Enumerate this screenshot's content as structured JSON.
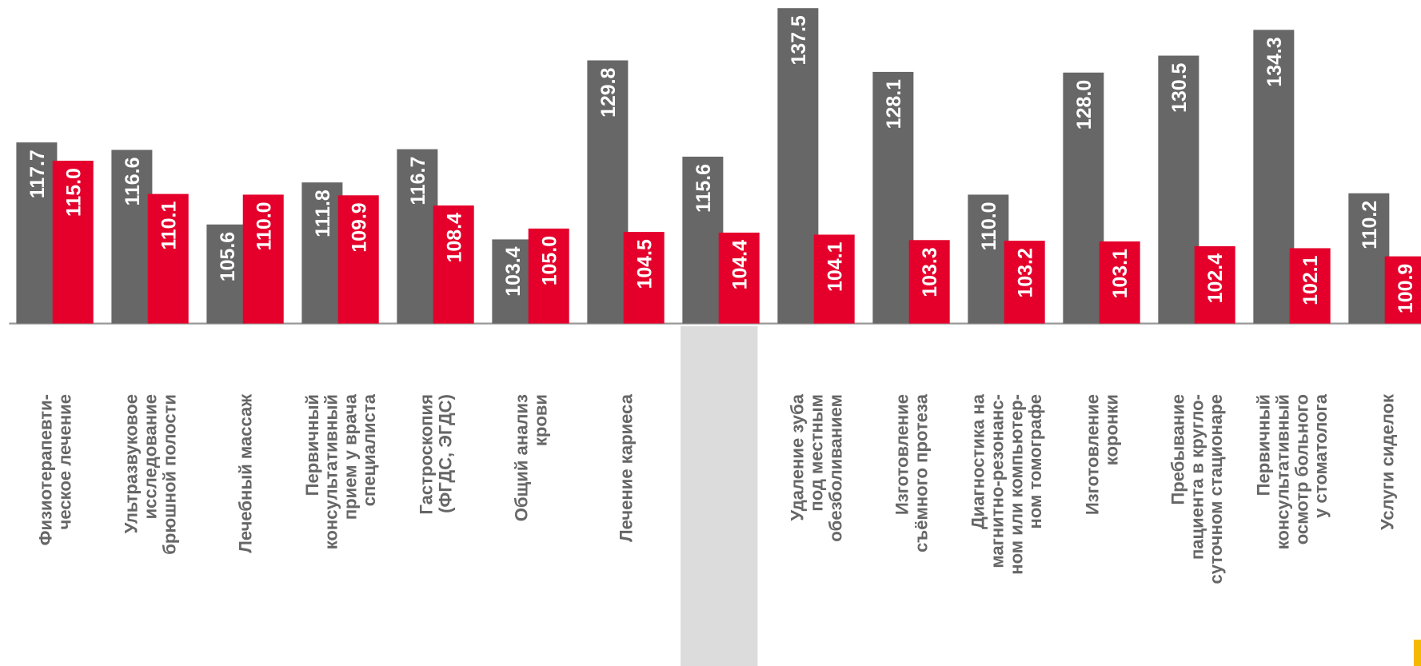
{
  "chart_data": {
    "type": "bar",
    "categories": [
      "Физиотерапевти-\nческое лечение",
      "Ультразвуковое\nисследование\nбрюшной полости",
      "Лечебный массаж",
      "Первичный\nконсультативный\nприем у врача\nспециалиста",
      "Гастроскопия\n(ФГДС, ЭГДС)",
      "Общий анализ\nкрови",
      "Лечение кариеса",
      null,
      "Удаление зуба\nпод местным\nобезболиванием",
      "Изготовление\nсъёмного протеза",
      "Диагностика на\nмагнитно-резонанс-\nном или компьютер-\nном томографе",
      "Изготовление\nкоронки",
      "Пребывание\nпациента в кругло-\nсуточном стационаре",
      "Первичный\nконсультативный\nосмотр больного\nу стоматолога",
      "Услуги сиделок"
    ],
    "series": [
      {
        "color": "#676767",
        "values": [
          117.7,
          116.6,
          105.6,
          111.8,
          116.7,
          103.4,
          129.8,
          115.6,
          137.5,
          128.1,
          110.0,
          128.0,
          130.5,
          134.3,
          110.2
        ],
        "value_labels": [
          "117.7",
          "116.6",
          "105.6",
          "111.8",
          "116.7",
          "103.4",
          "129.8",
          "115.6",
          "137.5",
          "128.1",
          "110.0",
          "128.0",
          "130.5",
          "134.3",
          "110.2"
        ]
      },
      {
        "color": "#e4002b",
        "values": [
          115.0,
          110.1,
          110.0,
          109.9,
          108.4,
          105.0,
          104.5,
          104.4,
          104.1,
          103.3,
          103.2,
          103.1,
          102.4,
          102.1,
          100.9
        ],
        "value_labels": [
          "115.0",
          "110.1",
          "110.0",
          "109.9",
          "108.4",
          "105.0",
          "104.5",
          "104.4",
          "104.1",
          "103.3",
          "103.2",
          "103.1",
          "102.4",
          "102.1",
          "100.9"
        ]
      }
    ],
    "ylim": [
      91,
      138.7
    ],
    "highlight_index": 7
  }
}
